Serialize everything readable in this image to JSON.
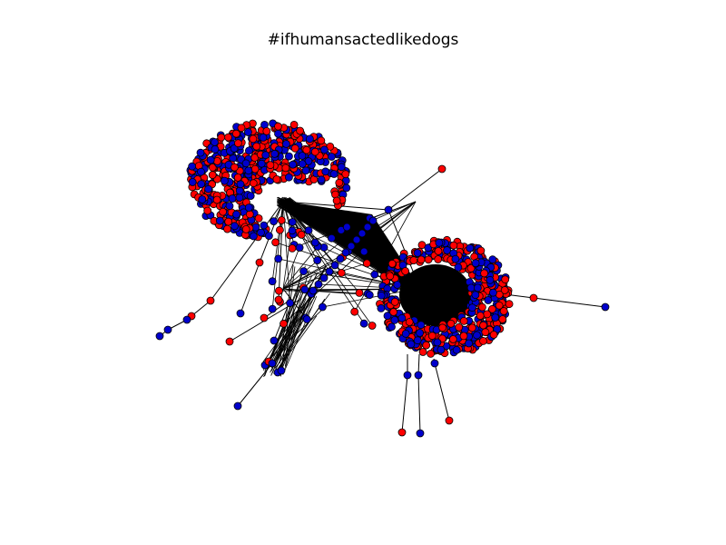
{
  "title": "#ifhumansactedlikedogs",
  "colors": {
    "red": "#ff0000",
    "blue": "#0000cc",
    "edge": "#000000",
    "outline": "#000000"
  },
  "legend": null
}
